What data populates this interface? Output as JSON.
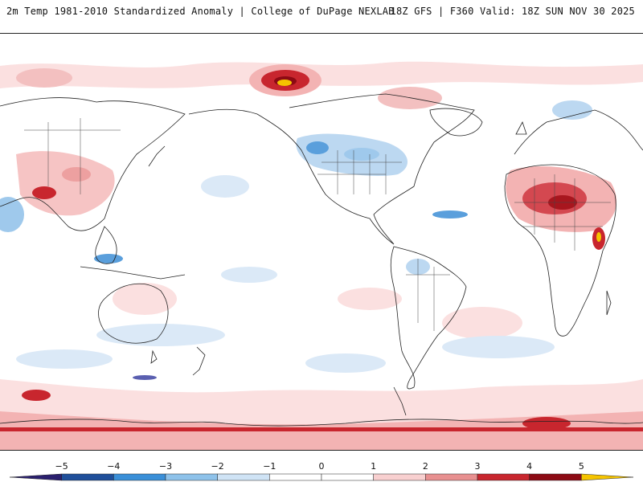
{
  "header": {
    "title": "2m Temp 1981-2010 Standardized Anomaly | College of DuPage NEXLAB",
    "run_info": "18Z GFS | F360 Valid: 18Z SUN NOV 30 2025"
  },
  "colorbar": {
    "labels": [
      "-5",
      "-4",
      "-3",
      "-2",
      "-1",
      "0",
      "1",
      "2",
      "3",
      "4",
      "5"
    ],
    "colors": [
      "#2a1f6e",
      "#1f4f9a",
      "#3a8fd8",
      "#8ec2ea",
      "#cfe3f5",
      "#ffffff",
      "#ffffff",
      "#f8d0d0",
      "#e89090",
      "#c8262e",
      "#8c0a14",
      "#f5c400"
    ]
  }
}
